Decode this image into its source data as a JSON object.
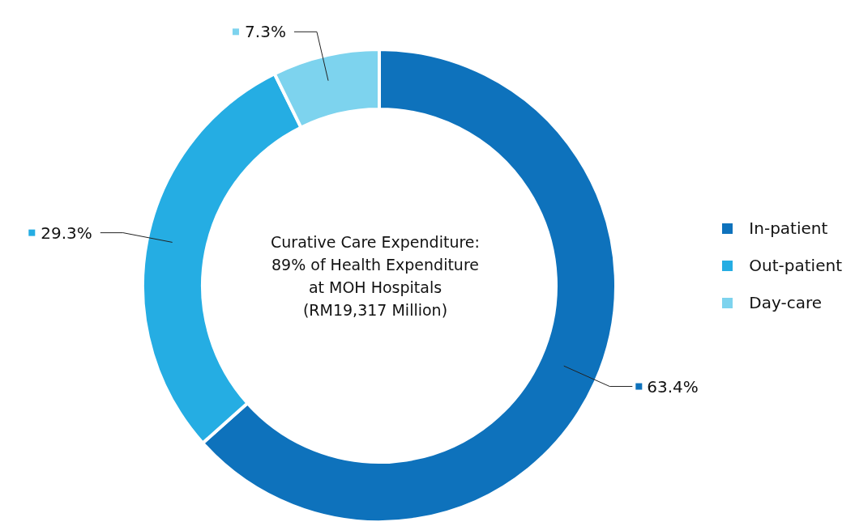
{
  "chart_data": {
    "type": "donut",
    "categories": [
      "In-patient",
      "Out-patient",
      "Day-care"
    ],
    "values": [
      63.4,
      29.3,
      7.3
    ],
    "colors": [
      "#0e72bc",
      "#25ade3",
      "#7dd3ee"
    ],
    "value_labels": [
      "63.4%",
      "29.3%",
      "7.3%"
    ],
    "annotations": [
      "Curative Care Expenditure:\n89% of Health Expenditure\nat MOH Hospitals\n(RM19,317 Million)"
    ],
    "legend": "right"
  }
}
